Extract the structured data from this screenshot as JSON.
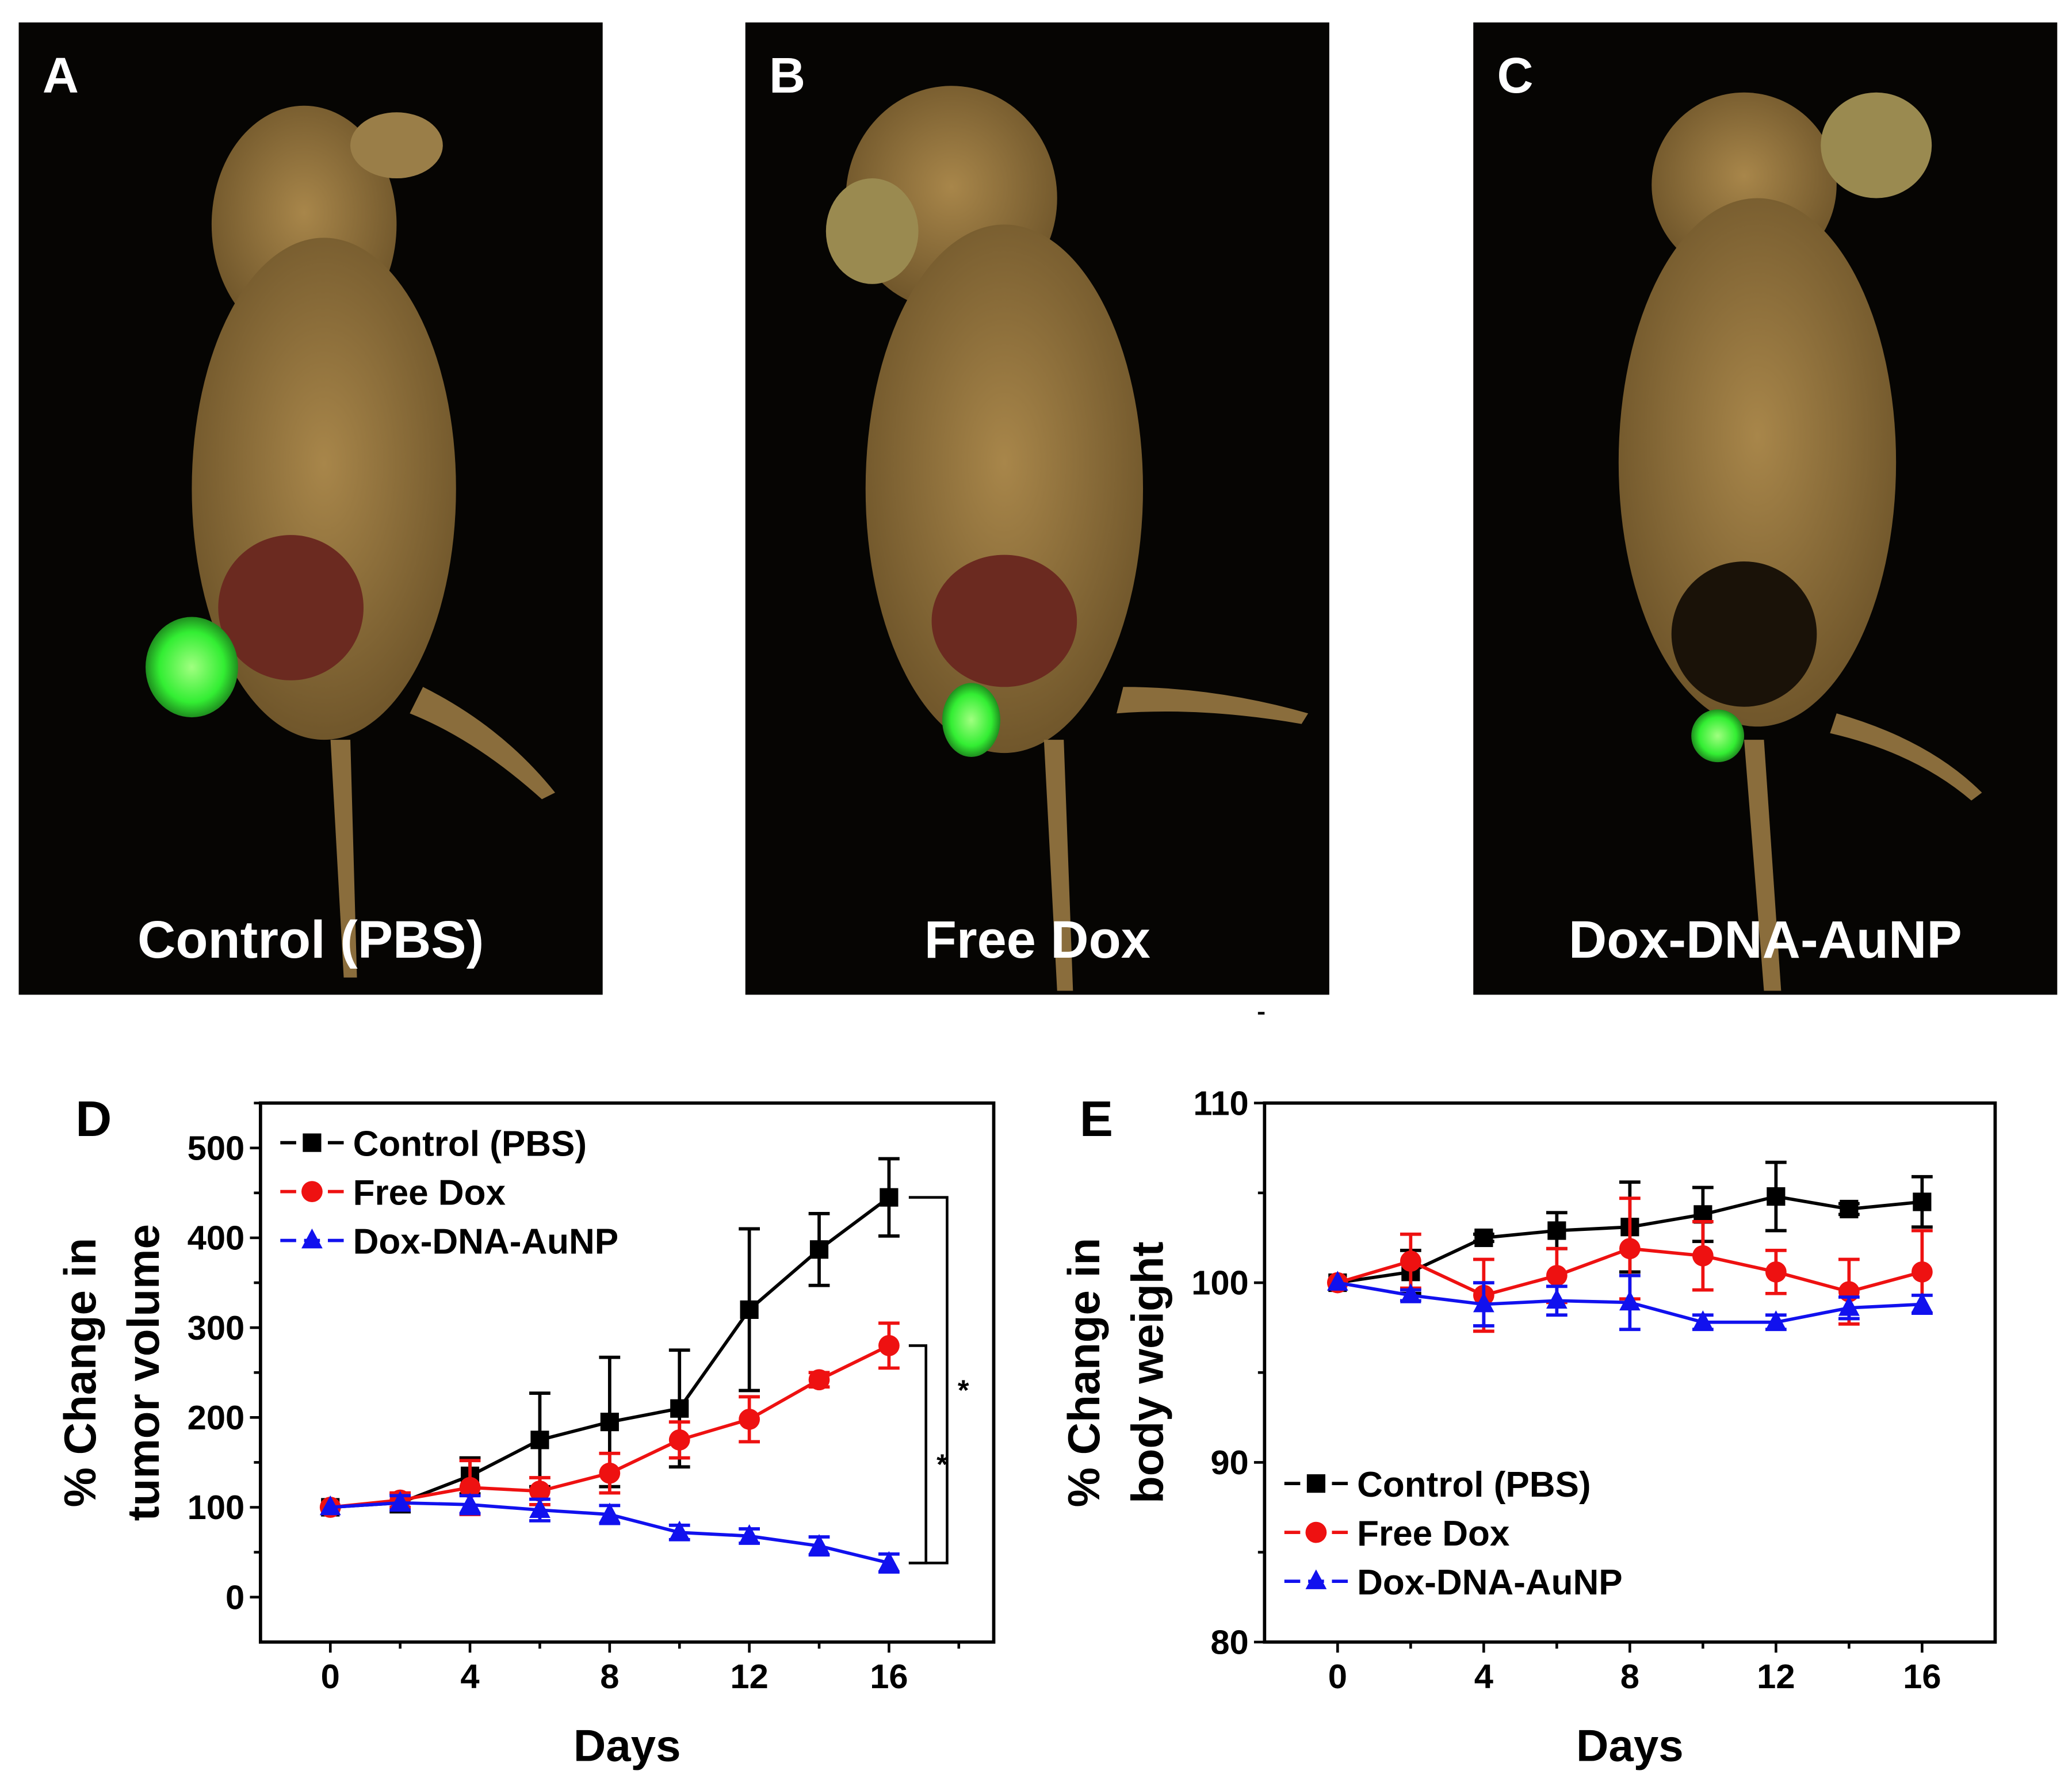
{
  "panels": [
    {
      "letter": "A",
      "caption": "Control (PBS)"
    },
    {
      "letter": "B",
      "caption": "Free Dox"
    },
    {
      "letter": "C",
      "caption": "Dox-DNA-AuNP"
    }
  ],
  "colors": {
    "control": "#000000",
    "free_dox": "#ee1111",
    "auNP": "#1111ee",
    "fluorescence": "#44ff44"
  },
  "chart_data": [
    {
      "panel_letter": "D",
      "type": "line",
      "title": "",
      "xlabel": "Days",
      "ylabel": [
        "% Change in",
        "tumor volume"
      ],
      "xlim": [
        -2,
        19
      ],
      "ylim": [
        -50,
        550
      ],
      "xticks": [
        0,
        4,
        8,
        12,
        16
      ],
      "yticks": [
        0,
        100,
        200,
        300,
        400,
        500
      ],
      "legend_position": "top-left",
      "x": [
        0,
        2,
        4,
        6,
        8,
        10,
        12,
        14,
        16
      ],
      "series": [
        {
          "name": "Control (PBS)",
          "marker": "square",
          "color": "#000000",
          "values": [
            100,
            105,
            135,
            175,
            195,
            210,
            320,
            387,
            445
          ],
          "errors": [
            0,
            10,
            20,
            52,
            72,
            65,
            90,
            40,
            43
          ]
        },
        {
          "name": "Free Dox",
          "marker": "circle",
          "color": "#ee1111",
          "values": [
            100,
            108,
            122,
            118,
            138,
            175,
            198,
            242,
            280
          ],
          "errors": [
            0,
            8,
            30,
            15,
            22,
            20,
            25,
            8,
            25
          ]
        },
        {
          "name": "Dox-DNA-AuNP",
          "marker": "triangle",
          "color": "#1111ee",
          "values": [
            100,
            105,
            103,
            97,
            92,
            72,
            68,
            57,
            38
          ],
          "errors": [
            0,
            8,
            10,
            12,
            10,
            8,
            8,
            10,
            10
          ]
        }
      ],
      "annotations": [
        {
          "text": "*",
          "from": "Control (PBS)",
          "to": "Dox-DNA-AuNP"
        },
        {
          "text": "*",
          "from": "Free Dox",
          "to": "Dox-DNA-AuNP"
        }
      ]
    },
    {
      "panel_letter": "E",
      "type": "line",
      "title": "",
      "xlabel": "Days",
      "ylabel": [
        "% Change in",
        "body weight"
      ],
      "xlim": [
        -2,
        18
      ],
      "ylim": [
        80,
        110
      ],
      "xticks": [
        0,
        4,
        8,
        12,
        16
      ],
      "yticks": [
        80,
        90,
        100,
        110
      ],
      "legend_position": "bottom-left",
      "x": [
        0,
        2,
        4,
        6,
        8,
        10,
        12,
        14,
        16
      ],
      "series": [
        {
          "name": "Control (PBS)",
          "marker": "square",
          "color": "#000000",
          "values": [
            100,
            100.6,
            102.5,
            102.9,
            103.1,
            103.8,
            104.8,
            104.1,
            104.5
          ],
          "errors": [
            0,
            1.2,
            0.2,
            1,
            2.5,
            1.5,
            1.9,
            0.3,
            1.4
          ]
        },
        {
          "name": "Free Dox",
          "marker": "circle",
          "color": "#ee1111",
          "values": [
            100,
            101.2,
            99.3,
            100.4,
            101.9,
            101.5,
            100.6,
            99.5,
            100.6
          ],
          "errors": [
            0,
            1.5,
            2,
            1.5,
            2.8,
            1.9,
            1.2,
            1.8,
            2.3
          ]
        },
        {
          "name": "Dox-DNA-AuNP",
          "marker": "triangle",
          "color": "#1111ee",
          "values": [
            100,
            99.3,
            98.8,
            99.0,
            98.9,
            97.8,
            97.8,
            98.6,
            98.8
          ],
          "errors": [
            0,
            0.3,
            1.2,
            0.8,
            1.5,
            0.4,
            0.4,
            0.6,
            0.5
          ]
        }
      ],
      "annotations": []
    }
  ]
}
